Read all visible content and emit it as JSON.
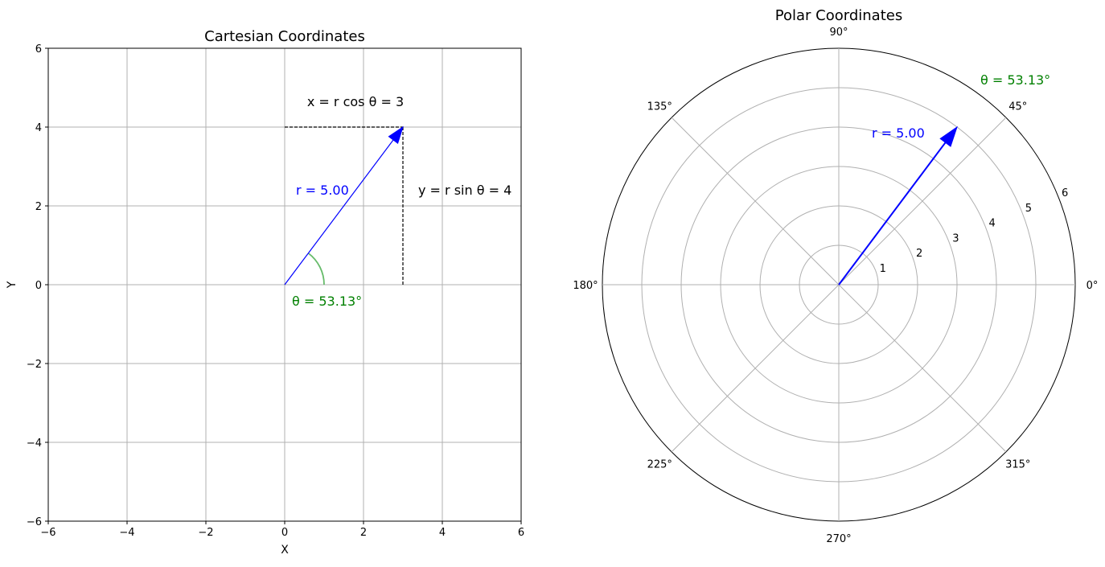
{
  "chart_data": [
    {
      "type": "line",
      "title": "Cartesian Coordinates",
      "xlabel": "X",
      "ylabel": "Y",
      "xlim": [
        -6,
        6
      ],
      "ylim": [
        -6,
        6
      ],
      "xticks": [
        -6,
        -4,
        -2,
        0,
        2,
        4,
        6
      ],
      "yticks": [
        -6,
        -4,
        -2,
        0,
        2,
        4,
        6
      ],
      "tick_labels_x": [
        "−6",
        "−4",
        "−2",
        "0",
        "2",
        "4",
        "6"
      ],
      "tick_labels_y": [
        "−6",
        "−4",
        "−2",
        "0",
        "2",
        "4",
        "6"
      ],
      "grid": true,
      "vector": {
        "x": 3,
        "y": 4
      },
      "angle_deg": 53.13,
      "annotations": {
        "x_label": "x = r cos θ = 3",
        "y_label": "y = r sin θ = 4",
        "r_label": "r = 5.00",
        "theta_label": "θ = 53.13°"
      },
      "colors": {
        "vector": "#0000ff",
        "angle": "#008000",
        "arc": "#66bb6a",
        "grid": "#b0b0b0",
        "dashed": "#000000"
      }
    },
    {
      "type": "polar",
      "title": "Polar Coordinates",
      "rlim": [
        0,
        6
      ],
      "rticks": [
        1,
        2,
        3,
        4,
        5,
        6
      ],
      "rtick_labels": [
        "1",
        "2",
        "3",
        "4",
        "5",
        "6"
      ],
      "theta_ticks_deg": [
        0,
        45,
        90,
        135,
        180,
        225,
        270,
        315
      ],
      "theta_tick_labels": [
        "0°",
        "45°",
        "90°",
        "135°",
        "180°",
        "225°",
        "270°",
        "315°"
      ],
      "grid": true,
      "vector": {
        "r": 5,
        "theta_deg": 53.13
      },
      "annotations": {
        "r_label": "r = 5.00",
        "theta_label": "θ = 53.13°"
      },
      "colors": {
        "vector": "#0000ff",
        "angle": "#008000",
        "grid": "#b0b0b0"
      }
    }
  ]
}
